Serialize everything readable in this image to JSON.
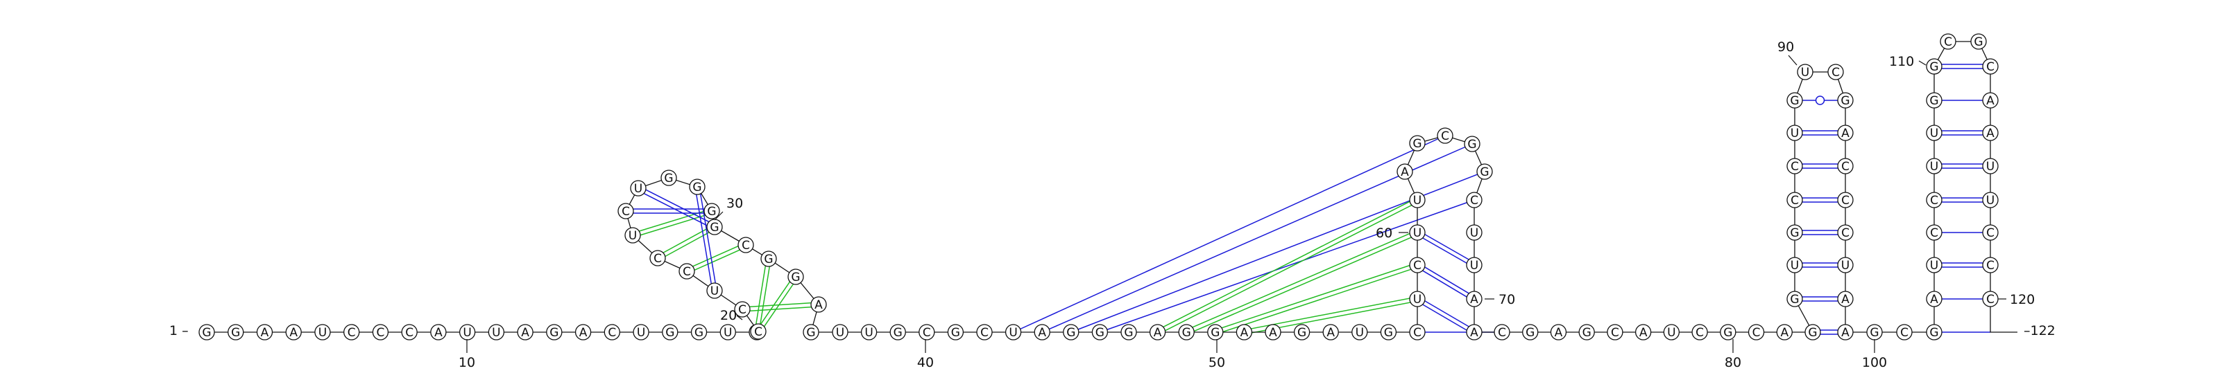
{
  "sequence": "GGAAUCCCAUUAGACUGGUCCCUCCUCUGGGGCGGAGUUGCGCUAGGGAGGAAGAUGCUCUUAGCGGCUUAACGAGCAUCGCAGGUGCCUGUCGACCCUAAGCGAUCCUUGGCGCAAUUCCC",
  "structure": {
    "seq_start_label": "1 –",
    "seq_end_label": "–122",
    "position_labels": [
      "10",
      "20",
      "30",
      "40",
      "50",
      "60",
      "70",
      "80",
      "90",
      "100",
      "110",
      "120"
    ]
  },
  "legend": {
    "pair_color": "#1a1ad8",
    "pseudoknot_color": "#22bb22"
  }
}
